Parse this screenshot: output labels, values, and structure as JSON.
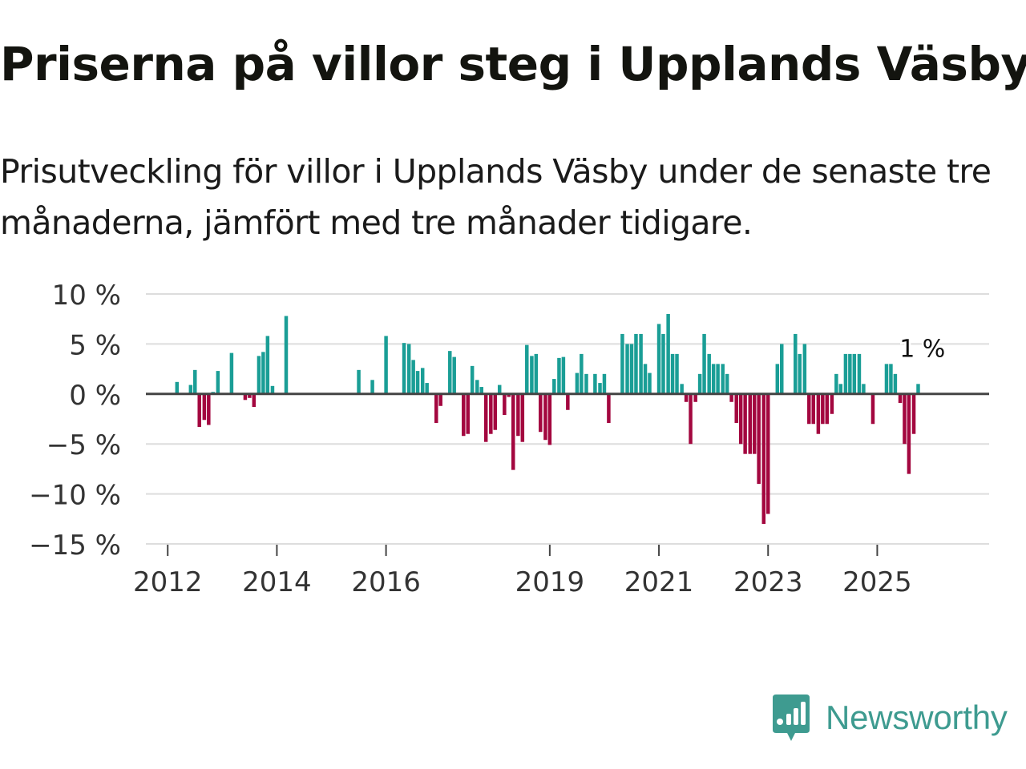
{
  "title": "Priserna på villor steg i Upplands Väsby",
  "subtitle": "Prisutveckling för villor i Upplands Väsby under de senaste tre månaderna, jämfört med tre månader tidigare.",
  "brand": {
    "name": "Newsworthy",
    "logo_icon": "newsworthy-logo-icon"
  },
  "colors": {
    "positive": "#1a9e96",
    "negative": "#a3073f",
    "grid": "#dddddd",
    "zero_line": "#444444",
    "axis_text": "#333333",
    "brand": "#3e9b90"
  },
  "chart_data": {
    "type": "bar",
    "title": "Priserna på villor steg i Upplands Väsby",
    "xlabel": "",
    "ylabel": "",
    "ylim": [
      -15,
      10
    ],
    "y_ticks": [
      10,
      5,
      0,
      -5,
      -10,
      -15
    ],
    "y_tick_labels": [
      "10 %",
      "5 %",
      "0 %",
      "−5 %",
      "−10 %",
      "−15 %"
    ],
    "x_ticks": [
      2012,
      2014,
      2016,
      2019,
      2021,
      2023,
      2025
    ],
    "x_tick_labels": [
      "2012",
      "2014",
      "2016",
      "2019",
      "2021",
      "2023",
      "2025"
    ],
    "grid": "horizontal",
    "x_range": [
      2011.6,
      2027.05
    ],
    "bar_width_years": 0.066,
    "annotation": {
      "text": "1 %",
      "x": 2025.71,
      "y": 1
    },
    "series": [
      {
        "name": "Prisutveckling",
        "points": [
          [
            2012.17,
            1.2
          ],
          [
            2012.42,
            0.9
          ],
          [
            2012.5,
            2.4
          ],
          [
            2012.58,
            -3.3
          ],
          [
            2012.67,
            -2.6
          ],
          [
            2012.75,
            -3.1
          ],
          [
            2012.83,
            0.2
          ],
          [
            2012.92,
            2.3
          ],
          [
            2013.17,
            4.1
          ],
          [
            2013.42,
            -0.6
          ],
          [
            2013.5,
            -0.4
          ],
          [
            2013.58,
            -1.3
          ],
          [
            2013.67,
            3.8
          ],
          [
            2013.75,
            4.2
          ],
          [
            2013.83,
            5.8
          ],
          [
            2013.92,
            0.8
          ],
          [
            2014.17,
            7.8
          ],
          [
            2015.5,
            2.4
          ],
          [
            2015.75,
            1.4
          ],
          [
            2016.0,
            5.8
          ],
          [
            2016.25,
            0.1
          ],
          [
            2016.33,
            5.1
          ],
          [
            2016.42,
            5.0
          ],
          [
            2016.5,
            3.4
          ],
          [
            2016.58,
            2.3
          ],
          [
            2016.67,
            2.6
          ],
          [
            2016.75,
            1.1
          ],
          [
            2016.92,
            -2.9
          ],
          [
            2017.0,
            -1.2
          ],
          [
            2017.17,
            4.3
          ],
          [
            2017.25,
            3.7
          ],
          [
            2017.42,
            -4.2
          ],
          [
            2017.5,
            -4.0
          ],
          [
            2017.58,
            2.8
          ],
          [
            2017.67,
            1.4
          ],
          [
            2017.75,
            0.7
          ],
          [
            2017.83,
            -4.8
          ],
          [
            2017.92,
            -4.0
          ],
          [
            2018.0,
            -3.6
          ],
          [
            2018.08,
            0.9
          ],
          [
            2018.17,
            -2.1
          ],
          [
            2018.25,
            -0.3
          ],
          [
            2018.33,
            -7.6
          ],
          [
            2018.42,
            -4.2
          ],
          [
            2018.5,
            -4.8
          ],
          [
            2018.58,
            4.9
          ],
          [
            2018.67,
            3.8
          ],
          [
            2018.75,
            4.0
          ],
          [
            2018.83,
            -3.8
          ],
          [
            2018.92,
            -4.6
          ],
          [
            2019.0,
            -5.1
          ],
          [
            2019.08,
            1.5
          ],
          [
            2019.17,
            3.6
          ],
          [
            2019.25,
            3.7
          ],
          [
            2019.33,
            -1.6
          ],
          [
            2019.5,
            2.1
          ],
          [
            2019.58,
            4.0
          ],
          [
            2019.67,
            2.0
          ],
          [
            2019.83,
            2.0
          ],
          [
            2019.92,
            1.1
          ],
          [
            2020.0,
            2.0
          ],
          [
            2020.08,
            -2.9
          ],
          [
            2020.33,
            6.0
          ],
          [
            2020.42,
            5.0
          ],
          [
            2020.5,
            5.0
          ],
          [
            2020.58,
            6.0
          ],
          [
            2020.67,
            6.0
          ],
          [
            2020.75,
            3.0
          ],
          [
            2020.83,
            2.1
          ],
          [
            2021.0,
            7.0
          ],
          [
            2021.08,
            6.0
          ],
          [
            2021.17,
            8.0
          ],
          [
            2021.25,
            4.0
          ],
          [
            2021.33,
            4.0
          ],
          [
            2021.42,
            1.0
          ],
          [
            2021.5,
            -0.8
          ],
          [
            2021.58,
            -5.0
          ],
          [
            2021.67,
            -0.8
          ],
          [
            2021.75,
            2.0
          ],
          [
            2021.83,
            6.0
          ],
          [
            2021.92,
            4.0
          ],
          [
            2022.0,
            3.0
          ],
          [
            2022.08,
            3.0
          ],
          [
            2022.17,
            3.0
          ],
          [
            2022.25,
            2.0
          ],
          [
            2022.33,
            -0.8
          ],
          [
            2022.42,
            -2.9
          ],
          [
            2022.5,
            -5.0
          ],
          [
            2022.58,
            -6.0
          ],
          [
            2022.67,
            -6.0
          ],
          [
            2022.75,
            -6.0
          ],
          [
            2022.83,
            -9.0
          ],
          [
            2022.92,
            -13.0
          ],
          [
            2023.0,
            -12.0
          ],
          [
            2023.17,
            3.0
          ],
          [
            2023.25,
            5.0
          ],
          [
            2023.5,
            6.0
          ],
          [
            2023.58,
            4.0
          ],
          [
            2023.67,
            5.0
          ],
          [
            2023.75,
            -3.0
          ],
          [
            2023.83,
            -3.0
          ],
          [
            2023.92,
            -4.0
          ],
          [
            2024.0,
            -3.0
          ],
          [
            2024.08,
            -3.0
          ],
          [
            2024.17,
            -2.0
          ],
          [
            2024.25,
            2.0
          ],
          [
            2024.33,
            1.0
          ],
          [
            2024.42,
            4.0
          ],
          [
            2024.5,
            4.0
          ],
          [
            2024.58,
            4.0
          ],
          [
            2024.67,
            4.0
          ],
          [
            2024.75,
            1.0
          ],
          [
            2024.92,
            -3.0
          ],
          [
            2025.17,
            3.0
          ],
          [
            2025.25,
            3.0
          ],
          [
            2025.33,
            2.0
          ],
          [
            2025.42,
            -0.9
          ],
          [
            2025.5,
            -5.0
          ],
          [
            2025.58,
            -8.0
          ],
          [
            2025.67,
            -4.0
          ],
          [
            2025.75,
            1.0
          ]
        ]
      }
    ]
  }
}
